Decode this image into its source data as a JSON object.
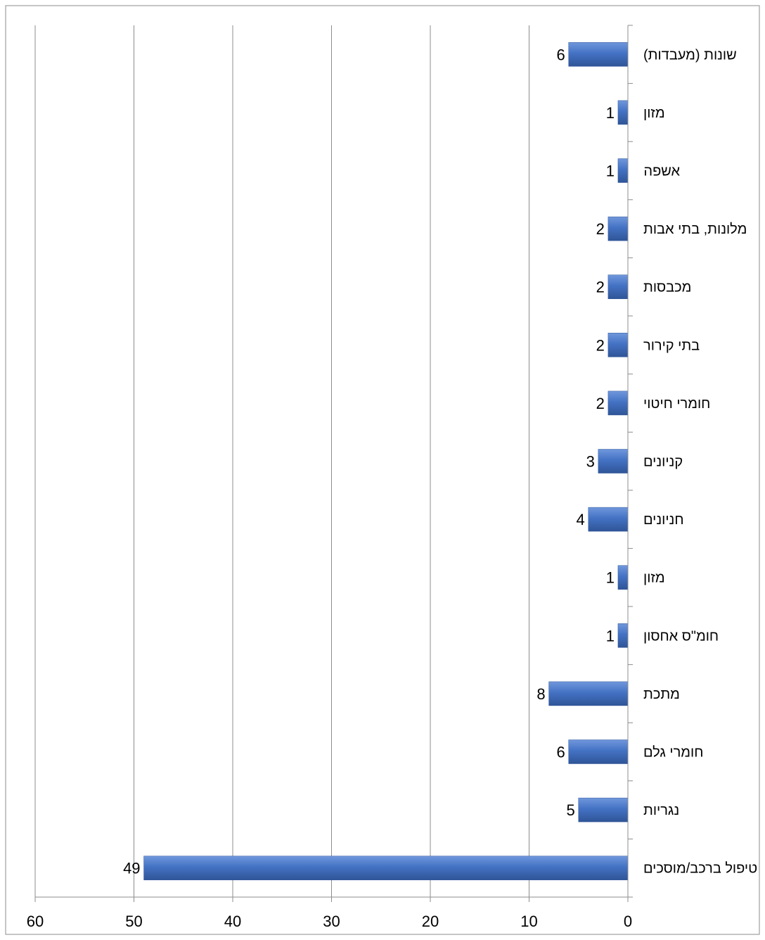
{
  "chart_data": {
    "type": "bar",
    "orientation": "horizontal",
    "x_direction": "reversed",
    "categories": [
      "שונות (מעבדות)",
      "מזון",
      "אשפה",
      "מלונות, בתי אבות",
      "מכבסות",
      "בתי קירור",
      "חומרי חיטוי",
      "קניונים",
      "חניונים",
      "מזון",
      "חומ\"ס אחסון",
      "מתכת",
      "חומרי גלם",
      "נגריות",
      "טיפול ברכב/מוסכים"
    ],
    "values": [
      6,
      1,
      1,
      2,
      2,
      2,
      2,
      3,
      4,
      1,
      1,
      8,
      6,
      5,
      49
    ],
    "data_labels": [
      "6",
      "1",
      "1",
      "2",
      "2",
      "2",
      "2",
      "3",
      "4",
      "1",
      "1",
      "8",
      "6",
      "5",
      "49"
    ],
    "xlim": [
      0,
      60
    ],
    "xticks": [
      0,
      10,
      20,
      30,
      40,
      50,
      60
    ],
    "xtick_labels": [
      "0",
      "10",
      "20",
      "30",
      "40",
      "50",
      "60"
    ],
    "title": "",
    "xlabel": "",
    "ylabel": "",
    "grid": "vertical",
    "legend": "none",
    "colors": {
      "bar": "#4472C4",
      "bar_light": "#6f97dc",
      "bar_dark": "#2f5597",
      "grid": "#8c8c8c",
      "axis": "#8c8c8c",
      "frame": "#8c8c8c"
    }
  }
}
